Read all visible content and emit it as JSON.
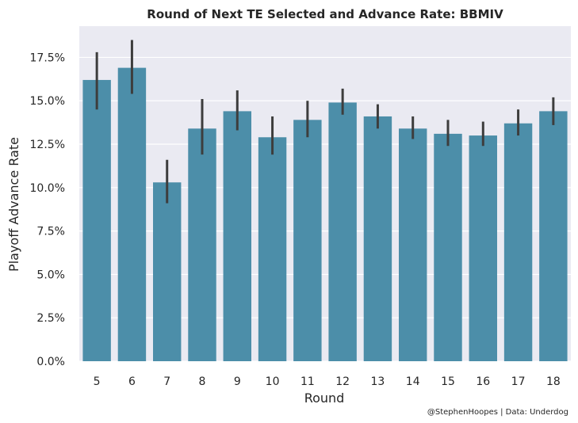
{
  "chart_data": {
    "type": "bar",
    "title": "Round of Next TE Selected and Advance Rate: BBMIV",
    "xlabel": "Round",
    "ylabel": "Playoff Advance Rate",
    "categories": [
      "5",
      "6",
      "7",
      "8",
      "9",
      "10",
      "11",
      "12",
      "13",
      "14",
      "15",
      "16",
      "17",
      "18"
    ],
    "values": [
      16.2,
      16.9,
      10.3,
      13.4,
      14.4,
      12.9,
      13.9,
      14.9,
      14.1,
      13.4,
      13.1,
      13.0,
      13.7,
      14.4
    ],
    "error_low": [
      14.5,
      15.4,
      9.1,
      11.9,
      13.3,
      11.9,
      12.9,
      14.2,
      13.4,
      12.8,
      12.4,
      12.4,
      13.0,
      13.6
    ],
    "error_high": [
      17.8,
      18.5,
      11.6,
      15.1,
      15.6,
      14.1,
      15.0,
      15.7,
      14.8,
      14.1,
      13.9,
      13.8,
      14.5,
      15.2
    ],
    "y_ticks": [
      "0.0%",
      "2.5%",
      "5.0%",
      "7.5%",
      "10.0%",
      "12.5%",
      "15.0%",
      "17.5%"
    ],
    "ylim": [
      0,
      19.3
    ],
    "y_tick_step": 2.5,
    "grid": true,
    "colors": {
      "bar": "#4c8ea9",
      "error": "#3d3d3d",
      "background": "#eaeaf2",
      "grid": "#ffffff"
    }
  },
  "credit": "@StephenHoopes | Data: Underdog"
}
